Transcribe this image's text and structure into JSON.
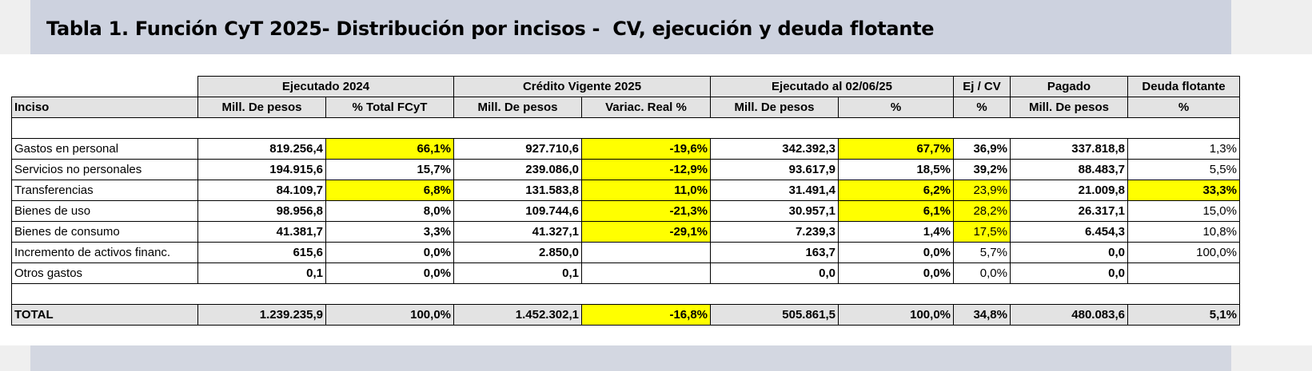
{
  "title": "Tabla 1. Función CyT 2025- Distribución por incisos -  CV, ejecución y deuda flotante",
  "table": {
    "group_headers": [
      "Ejecutado 2024",
      "Crédito Vigente 2025",
      "Ejecutado al 02/06/25",
      "Ej / CV",
      "Pagado",
      "Deuda flotante"
    ],
    "column_headers": [
      "Inciso",
      "Mill. De pesos",
      "% Total FCyT",
      "Mill. De pesos",
      "Variac. Real %",
      "Mill. De pesos",
      "%",
      "%",
      "Mill. De pesos",
      "%"
    ],
    "rows": [
      [
        "Gastos en personal",
        "819.256,4",
        "66,1%",
        "927.710,6",
        "-19,6%",
        "342.392,3",
        "67,7%",
        "36,9%",
        "337.818,8",
        "1,3%"
      ],
      [
        "Servicios no personales",
        "194.915,6",
        "15,7%",
        "239.086,0",
        "-12,9%",
        "93.617,9",
        "18,5%",
        "39,2%",
        "88.483,7",
        "5,5%"
      ],
      [
        "Transferencias",
        "84.109,7",
        "6,8%",
        "131.583,8",
        "11,0%",
        "31.491,4",
        "6,2%",
        "23,9%",
        "21.009,8",
        "33,3%"
      ],
      [
        "Bienes de uso",
        "98.956,8",
        "8,0%",
        "109.744,6",
        "-21,3%",
        "30.957,1",
        "6,1%",
        "28,2%",
        "26.317,1",
        "15,0%"
      ],
      [
        "Bienes de consumo",
        "41.381,7",
        "3,3%",
        "41.327,1",
        "-29,1%",
        "7.239,3",
        "1,4%",
        "17,5%",
        "6.454,3",
        "10,8%"
      ],
      [
        "Incremento de activos financ.",
        "615,6",
        "0,0%",
        "2.850,0",
        null,
        "163,7",
        "0,0%",
        "5,7%",
        "0,0",
        "100,0%"
      ],
      [
        "Otros gastos",
        "0,1",
        "0,0%",
        "0,1",
        null,
        "0,0",
        "0,0%",
        "0,0%",
        "0,0",
        null
      ]
    ],
    "total": [
      "TOTAL",
      "1.239.235,9",
      "100,0%",
      "1.452.302,1",
      "-16,8%",
      "505.861,5",
      "100,0%",
      "34,8%",
      "480.083,6",
      "5,1%"
    ]
  }
}
